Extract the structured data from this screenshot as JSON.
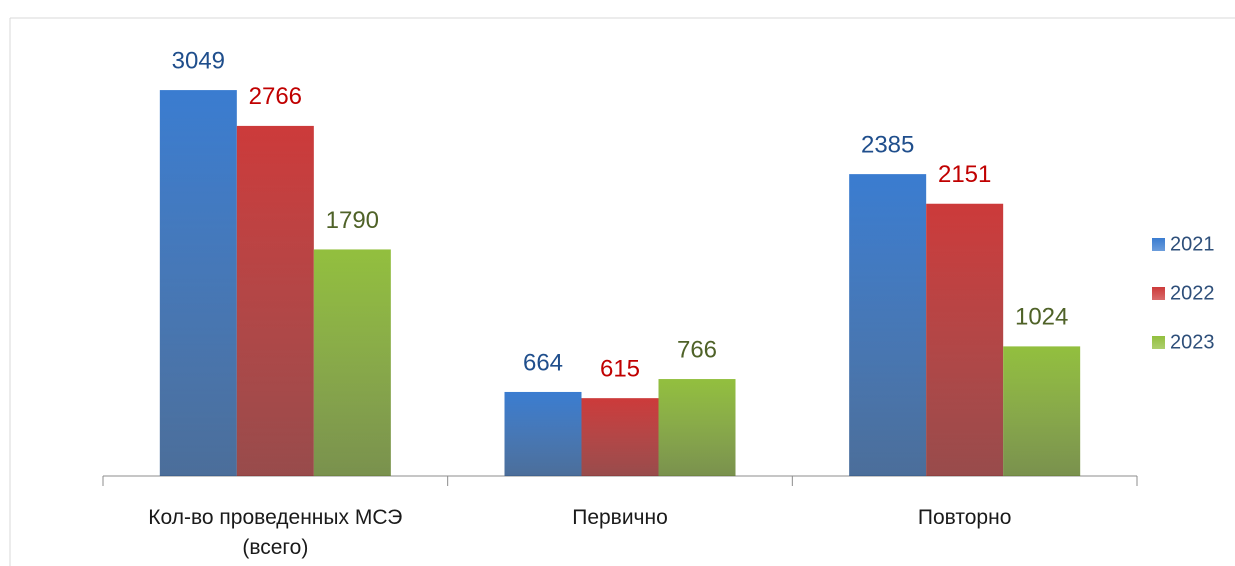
{
  "chart_data": {
    "type": "bar",
    "categories": [
      "Кол-во проведенных МСЭ (всего)",
      "Первично",
      "Повторно"
    ],
    "series": [
      {
        "name": "2021",
        "color": "#3a7cd0",
        "label_color": "#1f4e8c",
        "values": [
          3049,
          664,
          2385
        ]
      },
      {
        "name": "2022",
        "color": "#cc3a3a",
        "label_color": "#c00000",
        "values": [
          2766,
          615,
          2151
        ]
      },
      {
        "name": "2023",
        "color": "#92bf3e",
        "label_color": "#4f6228",
        "values": [
          1790,
          766,
          1024
        ]
      }
    ],
    "ylim": [
      0,
      3500
    ],
    "legend": "right"
  }
}
